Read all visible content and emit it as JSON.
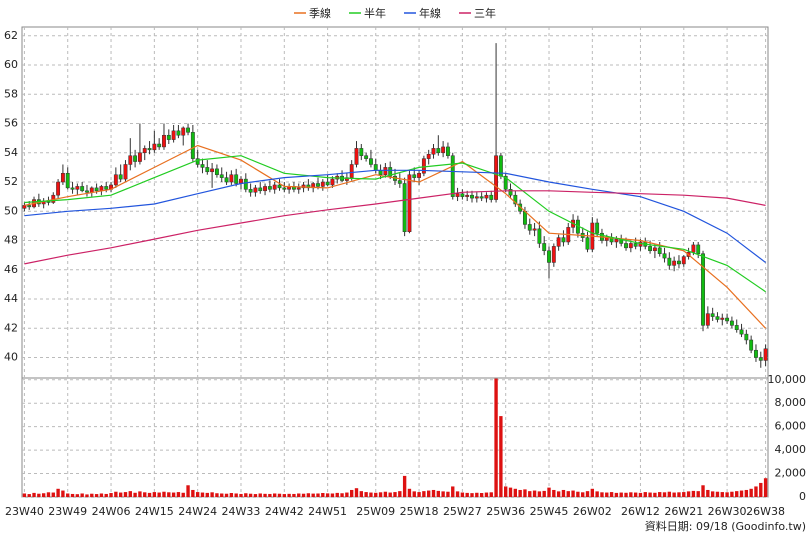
{
  "chart_data": {
    "type": "candlestick",
    "legend_position": "top",
    "footer": "資料日期: 09/18  (Goodinfo.tw)",
    "up_color": "#ee1111",
    "down_color": "#11bb11",
    "volume_color": "#dd1111",
    "grid": true,
    "xlim": [
      -0.5,
      154.5
    ],
    "xticks": [
      {
        "value": 0,
        "label": "23W40"
      },
      {
        "value": 9,
        "label": "23W49"
      },
      {
        "value": 18,
        "label": "24W06"
      },
      {
        "value": 27,
        "label": "24W15"
      },
      {
        "value": 36,
        "label": "24W24"
      },
      {
        "value": 45,
        "label": "24W33"
      },
      {
        "value": 54,
        "label": "24W42"
      },
      {
        "value": 63,
        "label": "24W51"
      },
      {
        "value": 73,
        "label": "25W09"
      },
      {
        "value": 82,
        "label": "25W18"
      },
      {
        "value": 91,
        "label": "25W27"
      },
      {
        "value": 100,
        "label": "25W36"
      },
      {
        "value": 109,
        "label": "25W45"
      },
      {
        "value": 118,
        "label": "26W02"
      },
      {
        "value": 128,
        "label": "26W12"
      },
      {
        "value": 137,
        "label": "26W21"
      },
      {
        "value": 146,
        "label": "26W30"
      },
      {
        "value": 154,
        "label": "26W38"
      }
    ],
    "ylim": [
      38.6,
      62.6
    ],
    "yticks": [
      40,
      42,
      44,
      46,
      48,
      50,
      52,
      54,
      56,
      58,
      60,
      62
    ],
    "y2lim": [
      0,
      10150
    ],
    "y2ticks": [
      0,
      {
        "value": 2000,
        "label": "2,000"
      },
      {
        "value": 4000,
        "label": "4,000"
      },
      {
        "value": 6000,
        "label": "6,000"
      },
      {
        "value": 8000,
        "label": "8,000"
      },
      {
        "value": 10000,
        "label": "10,000"
      }
    ],
    "ohlc": [
      [
        50.2,
        50.6,
        50.0,
        50.4
      ],
      [
        50.4,
        50.7,
        50.1,
        50.3
      ],
      [
        50.3,
        51.0,
        50.2,
        50.8
      ],
      [
        50.8,
        51.2,
        50.3,
        50.5
      ],
      [
        50.5,
        50.9,
        50.2,
        50.7
      ],
      [
        50.7,
        51.0,
        50.4,
        50.6
      ],
      [
        50.6,
        51.3,
        50.5,
        51.1
      ],
      [
        51.1,
        52.2,
        50.9,
        52.0
      ],
      [
        52.0,
        53.2,
        51.8,
        52.6
      ],
      [
        52.6,
        53.0,
        51.5,
        51.6
      ],
      [
        51.6,
        52.0,
        51.2,
        51.5
      ],
      [
        51.5,
        51.9,
        51.1,
        51.7
      ],
      [
        51.7,
        52.0,
        51.3,
        51.4
      ],
      [
        51.4,
        51.8,
        51.0,
        51.3
      ],
      [
        51.3,
        51.7,
        51.0,
        51.6
      ],
      [
        51.6,
        51.9,
        51.2,
        51.4
      ],
      [
        51.4,
        51.8,
        51.1,
        51.7
      ],
      [
        51.7,
        52.0,
        51.3,
        51.5
      ],
      [
        51.5,
        52.0,
        51.3,
        51.8
      ],
      [
        51.8,
        53.0,
        51.6,
        52.5
      ],
      [
        52.5,
        53.2,
        52.0,
        52.2
      ],
      [
        52.2,
        53.5,
        52.0,
        53.2
      ],
      [
        53.2,
        55.0,
        52.8,
        53.8
      ],
      [
        53.8,
        54.2,
        53.0,
        53.4
      ],
      [
        53.4,
        56.0,
        53.2,
        54.0
      ],
      [
        54.0,
        54.5,
        53.5,
        54.3
      ],
      [
        54.3,
        54.8,
        53.9,
        54.2
      ],
      [
        54.2,
        55.5,
        54.0,
        54.6
      ],
      [
        54.6,
        55.0,
        54.2,
        54.4
      ],
      [
        54.4,
        56.0,
        54.2,
        55.2
      ],
      [
        55.2,
        55.6,
        54.6,
        54.9
      ],
      [
        54.9,
        55.9,
        54.7,
        55.5
      ],
      [
        55.5,
        55.9,
        55.0,
        55.2
      ],
      [
        55.2,
        55.8,
        54.5,
        55.7
      ],
      [
        55.7,
        56.0,
        55.2,
        55.4
      ],
      [
        55.4,
        55.9,
        53.4,
        53.6
      ],
      [
        53.6,
        54.2,
        53.0,
        53.2
      ],
      [
        53.2,
        53.6,
        52.6,
        53.0
      ],
      [
        53.0,
        53.5,
        52.5,
        52.7
      ],
      [
        52.7,
        53.3,
        51.6,
        52.9
      ],
      [
        52.9,
        53.2,
        52.3,
        52.5
      ],
      [
        52.5,
        53.0,
        52.0,
        52.3
      ],
      [
        52.3,
        52.7,
        51.8,
        52.0
      ],
      [
        52.0,
        52.8,
        51.8,
        52.5
      ],
      [
        52.5,
        52.9,
        51.7,
        51.9
      ],
      [
        51.9,
        52.4,
        51.5,
        52.2
      ],
      [
        52.2,
        52.6,
        51.3,
        51.5
      ],
      [
        51.5,
        51.9,
        51.0,
        51.3
      ],
      [
        51.3,
        51.8,
        51.0,
        51.6
      ],
      [
        51.6,
        52.0,
        51.2,
        51.4
      ],
      [
        51.4,
        51.9,
        51.1,
        51.7
      ],
      [
        51.7,
        52.1,
        51.3,
        51.5
      ],
      [
        51.5,
        52.0,
        51.2,
        51.8
      ],
      [
        51.8,
        52.2,
        51.4,
        51.6
      ],
      [
        51.6,
        52.0,
        51.3,
        51.5
      ],
      [
        51.5,
        51.9,
        51.2,
        51.7
      ],
      [
        51.7,
        52.0,
        51.3,
        51.5
      ],
      [
        51.5,
        51.9,
        51.2,
        51.6
      ],
      [
        51.6,
        52.0,
        51.3,
        51.8
      ],
      [
        51.8,
        52.2,
        51.4,
        51.6
      ],
      [
        51.6,
        52.0,
        51.3,
        51.9
      ],
      [
        51.9,
        52.3,
        51.5,
        51.7
      ],
      [
        51.7,
        52.2,
        51.4,
        52.0
      ],
      [
        52.0,
        52.5,
        51.7,
        51.8
      ],
      [
        51.8,
        52.4,
        51.6,
        52.2
      ],
      [
        52.2,
        52.6,
        51.9,
        52.4
      ],
      [
        52.4,
        52.8,
        52.0,
        52.1
      ],
      [
        52.1,
        52.6,
        51.8,
        52.3
      ],
      [
        52.3,
        53.5,
        52.1,
        53.2
      ],
      [
        53.2,
        54.8,
        53.0,
        54.3
      ],
      [
        54.3,
        54.6,
        53.5,
        53.8
      ],
      [
        53.8,
        54.0,
        53.4,
        53.6
      ],
      [
        53.6,
        54.2,
        53.0,
        53.2
      ],
      [
        53.2,
        53.6,
        52.6,
        52.8
      ],
      [
        52.8,
        53.2,
        52.2,
        52.5
      ],
      [
        52.5,
        53.3,
        52.3,
        53.0
      ],
      [
        53.0,
        53.4,
        52.2,
        52.4
      ],
      [
        52.4,
        52.9,
        51.8,
        52.1
      ],
      [
        52.1,
        52.6,
        51.6,
        51.9
      ],
      [
        51.9,
        52.3,
        48.3,
        48.6
      ],
      [
        48.6,
        52.8,
        48.5,
        52.5
      ],
      [
        52.5,
        53.0,
        52.0,
        52.3
      ],
      [
        52.3,
        52.8,
        51.8,
        52.6
      ],
      [
        52.6,
        53.8,
        52.4,
        53.6
      ],
      [
        53.6,
        54.2,
        53.2,
        53.9
      ],
      [
        53.9,
        54.6,
        53.6,
        54.3
      ],
      [
        54.3,
        55.2,
        53.8,
        54.0
      ],
      [
        54.0,
        54.8,
        53.7,
        54.4
      ],
      [
        54.4,
        54.7,
        53.6,
        53.8
      ],
      [
        53.8,
        54.0,
        50.8,
        51.0
      ],
      [
        51.0,
        51.6,
        50.7,
        51.2
      ],
      [
        51.2,
        51.5,
        50.8,
        51.0
      ],
      [
        51.0,
        51.4,
        50.7,
        51.1
      ],
      [
        51.1,
        51.4,
        50.6,
        50.9
      ],
      [
        50.9,
        51.3,
        50.6,
        51.0
      ],
      [
        51.0,
        51.3,
        50.7,
        50.9
      ],
      [
        50.9,
        51.3,
        50.6,
        51.1
      ],
      [
        51.1,
        51.4,
        50.6,
        50.8
      ],
      [
        50.8,
        61.5,
        50.6,
        53.8
      ],
      [
        53.8,
        54.0,
        52.2,
        52.4
      ],
      [
        52.4,
        52.6,
        51.3,
        51.5
      ],
      [
        51.5,
        51.9,
        50.9,
        51.1
      ],
      [
        51.1,
        51.4,
        50.3,
        50.5
      ],
      [
        50.5,
        50.8,
        49.8,
        50.0
      ],
      [
        50.0,
        50.3,
        48.8,
        49.1
      ],
      [
        49.1,
        49.5,
        48.4,
        48.7
      ],
      [
        48.7,
        49.2,
        48.3,
        48.8
      ],
      [
        48.8,
        49.3,
        47.5,
        47.8
      ],
      [
        47.8,
        48.3,
        47.0,
        47.3
      ],
      [
        47.3,
        47.6,
        45.4,
        46.5
      ],
      [
        46.5,
        47.8,
        46.2,
        47.6
      ],
      [
        47.6,
        48.4,
        47.3,
        48.2
      ],
      [
        48.2,
        48.7,
        47.6,
        47.9
      ],
      [
        47.9,
        49.2,
        47.7,
        48.9
      ],
      [
        48.9,
        49.8,
        48.5,
        49.4
      ],
      [
        49.4,
        49.7,
        48.2,
        48.5
      ],
      [
        48.5,
        48.9,
        47.9,
        48.2
      ],
      [
        48.2,
        48.6,
        47.2,
        47.4
      ],
      [
        47.4,
        49.6,
        47.2,
        49.2
      ],
      [
        49.2,
        49.5,
        48.3,
        48.5
      ],
      [
        48.5,
        48.8,
        47.8,
        48.0
      ],
      [
        48.0,
        48.4,
        47.6,
        48.2
      ],
      [
        48.2,
        48.5,
        47.7,
        47.9
      ],
      [
        47.9,
        48.3,
        47.5,
        48.1
      ],
      [
        48.1,
        48.4,
        47.6,
        47.8
      ],
      [
        47.8,
        48.2,
        47.3,
        47.5
      ],
      [
        47.5,
        48.0,
        47.2,
        47.8
      ],
      [
        47.8,
        48.2,
        47.4,
        47.6
      ],
      [
        47.6,
        48.1,
        47.3,
        47.9
      ],
      [
        47.9,
        48.2,
        47.4,
        47.6
      ],
      [
        47.6,
        48.0,
        47.1,
        47.3
      ],
      [
        47.3,
        47.8,
        46.8,
        47.5
      ],
      [
        47.5,
        47.9,
        46.9,
        47.1
      ],
      [
        47.1,
        47.5,
        46.5,
        46.8
      ],
      [
        46.8,
        47.2,
        46.0,
        46.3
      ],
      [
        46.3,
        46.9,
        45.9,
        46.6
      ],
      [
        46.6,
        47.0,
        46.1,
        46.4
      ],
      [
        46.4,
        47.0,
        46.2,
        46.9
      ],
      [
        46.9,
        47.5,
        46.7,
        47.2
      ],
      [
        47.2,
        47.9,
        47.0,
        47.7
      ],
      [
        47.7,
        47.9,
        46.8,
        47.1
      ],
      [
        47.1,
        47.3,
        41.8,
        42.2
      ],
      [
        42.2,
        43.5,
        42.0,
        43.0
      ],
      [
        43.0,
        43.4,
        42.5,
        42.8
      ],
      [
        42.8,
        43.1,
        42.4,
        42.6
      ],
      [
        42.6,
        43.0,
        42.2,
        42.7
      ],
      [
        42.7,
        43.0,
        42.3,
        42.5
      ],
      [
        42.5,
        42.8,
        42.0,
        42.2
      ],
      [
        42.2,
        42.6,
        41.7,
        41.9
      ],
      [
        41.9,
        42.3,
        41.4,
        41.6
      ],
      [
        41.6,
        41.9,
        40.9,
        41.2
      ],
      [
        41.2,
        41.5,
        40.3,
        40.5
      ],
      [
        40.5,
        40.9,
        39.7,
        40.0
      ],
      [
        40.0,
        40.4,
        39.3,
        39.8
      ],
      [
        39.8,
        40.9,
        39.4,
        40.6
      ]
    ],
    "volume": [
      300,
      250,
      350,
      280,
      320,
      400,
      380,
      700,
      550,
      300,
      260,
      240,
      300,
      220,
      280,
      250,
      300,
      260,
      340,
      450,
      380,
      420,
      500,
      360,
      480,
      400,
      350,
      420,
      380,
      450,
      400,
      380,
      420,
      360,
      1000,
      600,
      420,
      380,
      350,
      400,
      320,
      300,
      280,
      340,
      300,
      260,
      320,
      280,
      250,
      300,
      270,
      260,
      300,
      280,
      250,
      270,
      260,
      300,
      280,
      320,
      290,
      300,
      340,
      310,
      300,
      350,
      320,
      380,
      600,
      750,
      500,
      420,
      380,
      360,
      400,
      450,
      380,
      420,
      500,
      1800,
      700,
      480,
      420,
      500,
      550,
      600,
      520,
      480,
      450,
      900,
      480,
      380,
      350,
      330,
      360,
      340,
      380,
      400,
      10100,
      6900,
      900,
      800,
      700,
      600,
      650,
      500,
      550,
      480,
      520,
      800,
      600,
      480,
      600,
      500,
      550,
      450,
      400,
      500,
      700,
      480,
      400,
      380,
      420,
      350,
      380,
      360,
      400,
      380,
      350,
      420,
      380,
      360,
      420,
      400,
      450,
      380,
      400,
      420,
      480,
      520,
      500,
      1000,
      600,
      480,
      450,
      420,
      400,
      450,
      500,
      550,
      600,
      700,
      900,
      1200,
      1600
    ],
    "ma_x": [
      0,
      9,
      18,
      27,
      36,
      45,
      54,
      63,
      73,
      82,
      91,
      100,
      109,
      118,
      128,
      137,
      146,
      154
    ],
    "series": [
      {
        "name": "季線",
        "color": "#e87020",
        "values": [
          50.4,
          51.0,
          51.5,
          53.0,
          54.5,
          53.5,
          51.7,
          51.6,
          52.5,
          52.0,
          53.4,
          51.2,
          48.5,
          48.3,
          48.0,
          47.3,
          44.8,
          42.0
        ]
      },
      {
        "name": "半年",
        "color": "#22cc22",
        "values": [
          50.6,
          50.8,
          51.1,
          52.3,
          53.5,
          53.8,
          52.6,
          52.3,
          52.2,
          53.0,
          53.3,
          52.3,
          50.0,
          48.5,
          47.8,
          47.4,
          46.3,
          44.5
        ]
      },
      {
        "name": "年線",
        "color": "#2255dd",
        "values": [
          49.7,
          50.0,
          50.2,
          50.5,
          51.2,
          51.9,
          52.3,
          52.5,
          52.8,
          52.8,
          52.7,
          52.6,
          52.0,
          51.5,
          51.0,
          50.0,
          48.5,
          46.5
        ]
      },
      {
        "name": "三年",
        "color": "#cc2266",
        "values": [
          46.4,
          47.0,
          47.5,
          48.1,
          48.7,
          49.2,
          49.7,
          50.1,
          50.5,
          50.9,
          51.3,
          51.4,
          51.4,
          51.3,
          51.2,
          51.1,
          50.9,
          50.4
        ]
      }
    ]
  }
}
